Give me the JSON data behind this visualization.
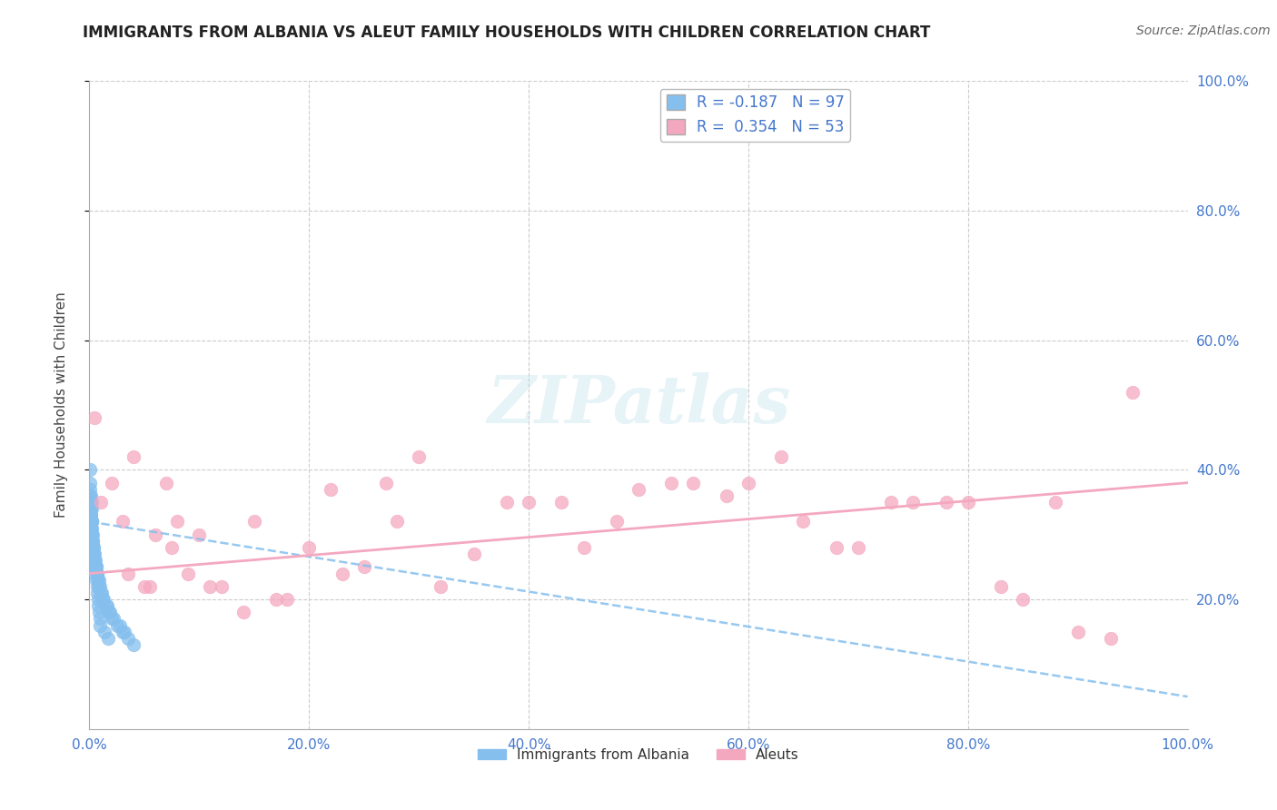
{
  "title": "IMMIGRANTS FROM ALBANIA VS ALEUT FAMILY HOUSEHOLDS WITH CHILDREN CORRELATION CHART",
  "source": "Source: ZipAtlas.com",
  "ylabel": "Family Households with Children",
  "axis_label_color": "#4477cc",
  "grid_color": "#cccccc",
  "background_color": "#ffffff",
  "blue_color": "#85bfee",
  "pink_color": "#f4a8c0",
  "title_color": "#222222",
  "legend_entries": [
    {
      "label": "R = -0.187   N = 97"
    },
    {
      "label": "R =  0.354   N = 53"
    }
  ],
  "legend_labels": [
    "Immigrants from Albania",
    "Aleuts"
  ],
  "blue_scatter_x": [
    0.05,
    0.08,
    0.1,
    0.12,
    0.14,
    0.16,
    0.18,
    0.2,
    0.22,
    0.24,
    0.06,
    0.09,
    0.11,
    0.13,
    0.15,
    0.17,
    0.19,
    0.21,
    0.23,
    0.25,
    0.07,
    0.1,
    0.12,
    0.14,
    0.16,
    0.18,
    0.2,
    0.22,
    0.24,
    0.26,
    0.05,
    0.07,
    0.09,
    0.11,
    0.13,
    0.15,
    0.17,
    0.19,
    0.21,
    0.23,
    0.06,
    0.08,
    0.1,
    0.12,
    0.14,
    0.16,
    0.18,
    0.2,
    0.22,
    0.24,
    0.3,
    0.35,
    0.4,
    0.5,
    0.6,
    0.7,
    0.8,
    0.9,
    1.0,
    1.2,
    1.5,
    1.8,
    2.0,
    2.5,
    3.0,
    3.5,
    4.0,
    0.45,
    0.55,
    0.65,
    0.75,
    0.85,
    0.95,
    1.1,
    1.3,
    1.6,
    1.9,
    2.2,
    2.8,
    3.2,
    0.28,
    0.32,
    0.38,
    0.42,
    0.48,
    0.52,
    0.58,
    0.62,
    0.68,
    0.72,
    0.78,
    0.82,
    0.88,
    0.92,
    0.96,
    1.4,
    1.7
  ],
  "blue_scatter_y": [
    38,
    36,
    32,
    34,
    28,
    30,
    29,
    35,
    31,
    27,
    40,
    33,
    29,
    31,
    27,
    35,
    28,
    32,
    26,
    30,
    37,
    36,
    31,
    33,
    29,
    34,
    28,
    30,
    25,
    27,
    36,
    34,
    30,
    29,
    27,
    31,
    26,
    28,
    25,
    32,
    35,
    33,
    31,
    29,
    27,
    25,
    28,
    30,
    32,
    27,
    29,
    27,
    28,
    26,
    25,
    24,
    23,
    22,
    21,
    20,
    19,
    18,
    17,
    16,
    15,
    14,
    13,
    27,
    26,
    25,
    24,
    23,
    22,
    21,
    20,
    19,
    18,
    17,
    16,
    15,
    30,
    29,
    28,
    27,
    26,
    25,
    24,
    23,
    22,
    21,
    20,
    19,
    18,
    17,
    16,
    15,
    14
  ],
  "pink_scatter_x": [
    0.5,
    1.0,
    2.0,
    3.0,
    4.0,
    5.0,
    6.0,
    7.0,
    8.0,
    9.0,
    10.0,
    12.0,
    15.0,
    18.0,
    20.0,
    22.0,
    25.0,
    28.0,
    30.0,
    35.0,
    40.0,
    45.0,
    50.0,
    55.0,
    60.0,
    65.0,
    70.0,
    75.0,
    80.0,
    85.0,
    90.0,
    95.0,
    3.5,
    5.5,
    7.5,
    11.0,
    14.0,
    17.0,
    23.0,
    27.0,
    32.0,
    38.0,
    43.0,
    48.0,
    53.0,
    58.0,
    63.0,
    68.0,
    73.0,
    78.0,
    83.0,
    88.0,
    93.0
  ],
  "pink_scatter_y": [
    48,
    35,
    38,
    32,
    42,
    22,
    30,
    38,
    32,
    24,
    30,
    22,
    32,
    20,
    28,
    37,
    25,
    32,
    42,
    27,
    35,
    28,
    37,
    38,
    38,
    32,
    28,
    35,
    35,
    20,
    15,
    52,
    24,
    22,
    28,
    22,
    18,
    20,
    24,
    38,
    22,
    35,
    35,
    32,
    38,
    36,
    42,
    28,
    35,
    35,
    22,
    35,
    14
  ],
  "blue_line_x": [
    0.0,
    100.0
  ],
  "blue_line_y": [
    32.0,
    5.0
  ],
  "pink_line_x": [
    0.0,
    100.0
  ],
  "pink_line_y": [
    24.0,
    38.0
  ],
  "xlim": [
    0,
    100
  ],
  "ylim": [
    0,
    100
  ],
  "xticks": [
    0,
    20,
    40,
    60,
    80,
    100
  ],
  "yticks": [
    20,
    40,
    60,
    80,
    100
  ],
  "xtick_labels": [
    "0.0%",
    "20.0%",
    "40.0%",
    "60.0%",
    "80.0%",
    "100.0%"
  ],
  "ytick_labels": [
    "20.0%",
    "40.0%",
    "60.0%",
    "80.0%",
    "100.0%"
  ]
}
